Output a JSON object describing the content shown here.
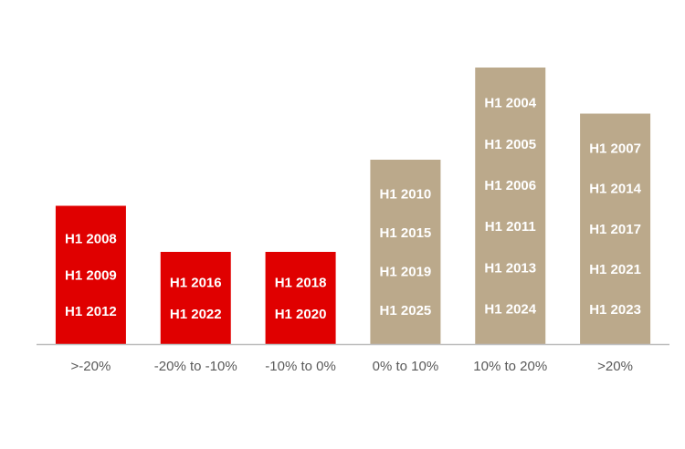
{
  "chart_data": {
    "type": "bar",
    "title": "",
    "xlabel": "",
    "ylabel": "",
    "categories": [
      ">-20%",
      "-20% to -10%",
      "-10% to 0%",
      "0% to 10%",
      "10% to 20%",
      ">20%"
    ],
    "values": [
      3,
      2,
      2,
      4,
      6,
      5
    ],
    "ylim": [
      0,
      6
    ],
    "grid": false,
    "legend": "none",
    "bar_items": [
      [
        "H1 2008",
        "H1 2009",
        "H1 2012"
      ],
      [
        "H1 2016",
        "H1 2022"
      ],
      [
        "H1 2018",
        "H1 2020"
      ],
      [
        "H1 2010",
        "H1 2015",
        "H1 2019",
        "H1 2025"
      ],
      [
        "H1 2004",
        "H1 2005",
        "H1 2006",
        "H1 2011",
        "H1 2013",
        "H1 2024"
      ],
      [
        "H1 2007",
        "H1 2014",
        "H1 2017",
        "H1 2021",
        "H1 2023"
      ]
    ],
    "bar_colors": [
      "#e00000",
      "#e00000",
      "#e00000",
      "#bba98b",
      "#bba98b",
      "#bba98b"
    ],
    "axis_color": "#bfbfbf",
    "tick_color": "#595959"
  }
}
